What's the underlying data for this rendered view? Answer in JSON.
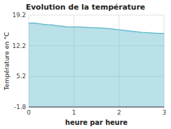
{
  "chart_data": {
    "type": "area",
    "title": "Evolution de la température",
    "xlabel": "heure par heure",
    "ylabel": "Température en °C",
    "color": "#66bbcc",
    "grid": true,
    "xlim": [
      0,
      3
    ],
    "ylim": [
      -1.8,
      19.2
    ],
    "xticks": [
      0,
      1,
      2,
      3
    ],
    "yticks": [
      -1.8,
      5.2,
      12.2,
      19.2
    ],
    "x": [
      0.0,
      0.083,
      0.167,
      0.25,
      0.333,
      0.417,
      0.5,
      0.583,
      0.667,
      0.75,
      0.833,
      0.917,
      1.0,
      1.083,
      1.167,
      1.25,
      1.333,
      1.417,
      1.5,
      1.583,
      1.667,
      1.75,
      1.833,
      1.917,
      2.0,
      2.083,
      2.167,
      2.25,
      2.333,
      2.417,
      2.5,
      2.583,
      2.667,
      2.75,
      2.833,
      2.917,
      3.0
    ],
    "values": [
      17.3,
      17.4,
      17.3,
      17.2,
      17.1,
      17.0,
      16.95,
      16.85,
      16.75,
      16.65,
      16.55,
      16.5,
      16.5,
      16.5,
      16.45,
      16.4,
      16.35,
      16.3,
      16.3,
      16.25,
      16.2,
      16.15,
      16.05,
      15.95,
      15.85,
      15.75,
      15.65,
      15.55,
      15.45,
      15.35,
      15.25,
      15.2,
      15.15,
      15.1,
      15.05,
      15.0,
      15.0
    ]
  }
}
